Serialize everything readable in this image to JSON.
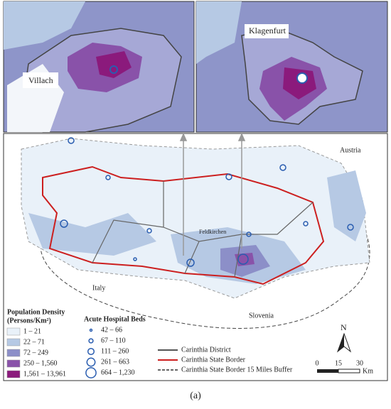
{
  "insets": [
    {
      "label": "Villach"
    },
    {
      "label": "Klagenfurt"
    }
  ],
  "map": {
    "labels": [
      "Austria",
      "Feldkirchen",
      "Italy",
      "Slovenia"
    ]
  },
  "legend": {
    "population_density": {
      "title": "Population Density",
      "unit": "(Persons/Km²)",
      "items": [
        {
          "label": "1 – 21",
          "color": "#e9f1f9"
        },
        {
          "label": "22 – 71",
          "color": "#b6c9e4"
        },
        {
          "label": "72 – 249",
          "color": "#8c8fc8"
        },
        {
          "label": "250 – 1,560",
          "color": "#8952a9"
        },
        {
          "label": "1,561 – 13,961",
          "color": "#8b1a7c"
        }
      ]
    },
    "hospital_beds": {
      "title": "Acute Hospital Beds",
      "items": [
        "42 – 66",
        "67 – 110",
        "111 – 260",
        "261 – 663",
        "664 – 1,230"
      ]
    },
    "boundaries": [
      "Carinthia District",
      "Carinthia State Border",
      "Carinthia State Border 15 Miles Buffer"
    ]
  },
  "north_arrow": "N",
  "scale_bar": {
    "ticks": [
      "0",
      "15",
      "30"
    ],
    "unit": "Km"
  },
  "caption": "(a)"
}
